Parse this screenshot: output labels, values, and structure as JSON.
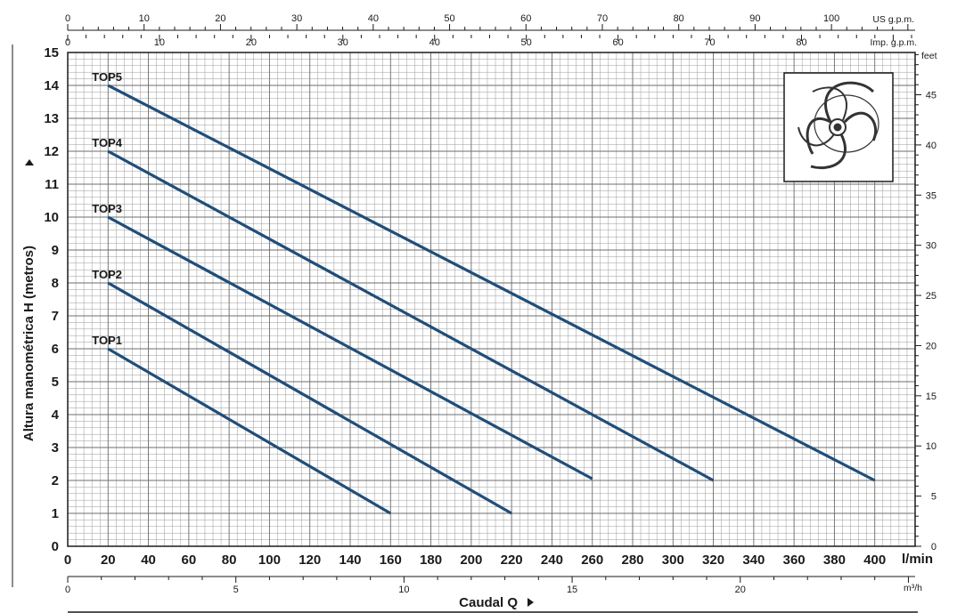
{
  "chart_data": {
    "type": "line",
    "xlabel": "Caudal Q",
    "ylabel": "Altura manométrica H (metros)",
    "x_unit": "l/min",
    "xlim": [
      0,
      420
    ],
    "ylim": [
      0,
      15
    ],
    "x_ticks": [
      0,
      20,
      40,
      60,
      80,
      100,
      120,
      140,
      160,
      180,
      200,
      220,
      240,
      260,
      280,
      300,
      320,
      340,
      360,
      380,
      400
    ],
    "y_ticks": [
      0,
      1,
      2,
      3,
      4,
      5,
      6,
      7,
      8,
      9,
      10,
      11,
      12,
      13,
      14,
      15
    ],
    "secondary_axes": {
      "top_us": {
        "unit": "US g.p.m.",
        "ticks": [
          0,
          10,
          20,
          30,
          40,
          50,
          60,
          70,
          80,
          90,
          100
        ]
      },
      "top_imp": {
        "unit": "Imp. g.p.m.",
        "ticks": [
          0,
          10,
          20,
          30,
          40,
          50,
          60,
          70,
          80
        ]
      },
      "right_feet": {
        "unit": "feet",
        "ticks": [
          0,
          5,
          10,
          15,
          20,
          25,
          30,
          35,
          40,
          45
        ]
      },
      "bottom_m3h": {
        "unit": "m³/h",
        "ticks": [
          0,
          5,
          10,
          15,
          20
        ]
      }
    },
    "grid": true,
    "series": [
      {
        "name": "TOP1",
        "x": [
          20,
          160
        ],
        "y": [
          6,
          1
        ]
      },
      {
        "name": "TOP2",
        "x": [
          20,
          220
        ],
        "y": [
          8,
          1
        ]
      },
      {
        "name": "TOP3",
        "x": [
          20,
          260
        ],
        "y": [
          10,
          2.05
        ]
      },
      {
        "name": "TOP4",
        "x": [
          20,
          320
        ],
        "y": [
          12,
          2
        ]
      },
      {
        "name": "TOP5",
        "x": [
          20,
          400
        ],
        "y": [
          14,
          2
        ]
      }
    ],
    "colors": {
      "line": "#1f4e79",
      "grid": "#9a9a9a",
      "frame": "#1a1a1a"
    }
  }
}
